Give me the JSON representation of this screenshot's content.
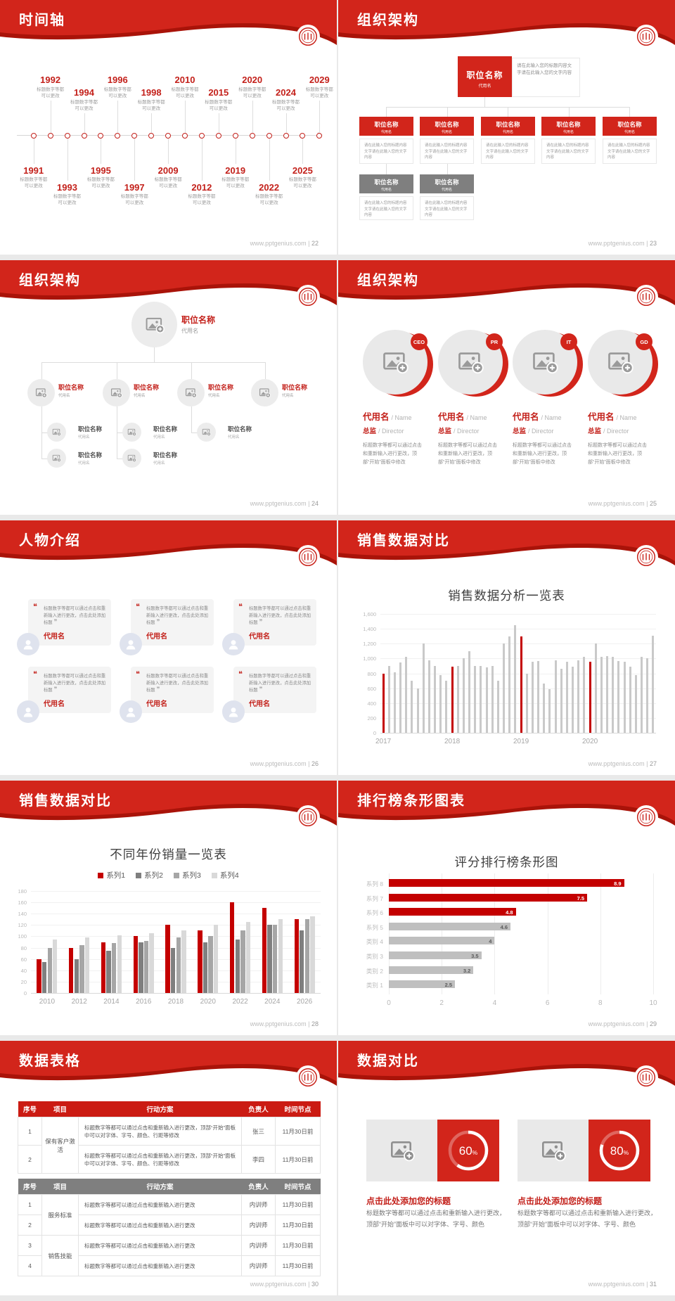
{
  "site": "www.pptgenius.com",
  "shared": {
    "job_title": "职位名称",
    "alias": "代用名",
    "org_note": "请在此输入您的标题内容文字请在此输入您的文字内容",
    "quote_open": "❝",
    "quote_close": "❞"
  },
  "slides": {
    "timeline": {
      "title": "时间轴",
      "page": "22",
      "caption": "标题数字等都可以更改",
      "years": [
        {
          "year": "1991",
          "pos": "bn"
        },
        {
          "year": "1992",
          "pos": "af"
        },
        {
          "year": "1993",
          "pos": "bf"
        },
        {
          "year": "1994",
          "pos": "an"
        },
        {
          "year": "1995",
          "pos": "bn"
        },
        {
          "year": "1996",
          "pos": "af"
        },
        {
          "year": "1997",
          "pos": "bf"
        },
        {
          "year": "1998",
          "pos": "an"
        },
        {
          "year": "2009",
          "pos": "bn"
        },
        {
          "year": "2010",
          "pos": "af"
        },
        {
          "year": "2012",
          "pos": "bf"
        },
        {
          "year": "2015",
          "pos": "an"
        },
        {
          "year": "2019",
          "pos": "bn"
        },
        {
          "year": "2020",
          "pos": "af"
        },
        {
          "year": "2022",
          "pos": "bf"
        },
        {
          "year": "2024",
          "pos": "an"
        },
        {
          "year": "2025",
          "pos": "bn"
        },
        {
          "year": "2029",
          "pos": "af"
        }
      ]
    },
    "org_boxes": {
      "title": "组织架构",
      "page": "23"
    },
    "org_photos": {
      "title": "组织架构",
      "page": "24"
    },
    "org_circles": {
      "title": "组织架构",
      "page": "25",
      "badges": [
        "CEO",
        "PR",
        "IT",
        "GD"
      ],
      "name_cn": "代用名",
      "name_en": "/ Name",
      "role_cn": "总监",
      "role_en": "/ Director",
      "desc": "标题数字等都可以通过点击和重新输入进行更改，顶部“开始”面板中修改"
    },
    "people": {
      "title": "人物介绍",
      "page": "26",
      "quote": "标题数字等都可以通过点击和重新输入进行更改，点击此处添加标题",
      "name": "代用名"
    },
    "chart_bars": {
      "title": "销售数据对比",
      "page": "27"
    },
    "chart_groups": {
      "title": "销售数据对比",
      "page": "28"
    },
    "chart_ranking": {
      "title": "排行榜条形图表",
      "page": "29"
    },
    "tables": {
      "title": "数据表格",
      "page": "30",
      "t1": {
        "header": [
          "序号",
          "项目",
          "行动方案",
          "负责人",
          "时间节点"
        ],
        "merged_project": "保有客户激活",
        "rows": [
          {
            "no": "1",
            "plan": "标题数字等都可以通过点击和重新输入进行更改，顶部“开始”面板中可以对字体、字号、颜色、行距等修改",
            "owner": "张三",
            "deadline": "11月30日前"
          },
          {
            "no": "2",
            "plan": "标题数字等都可以通过点击和重新输入进行更改，顶部“开始”面板中可以对字体、字号、颜色、行距等修改",
            "owner": "李四",
            "deadline": "11月30日前"
          }
        ]
      },
      "t2": {
        "header": [
          "序号",
          "项目",
          "行动方案",
          "负责人",
          "时间节点"
        ],
        "merged_projects": [
          "服务标准",
          "销售技能"
        ],
        "rows": [
          {
            "no": "1",
            "plan": "标题数字等都可以通过点击和重新输入进行更改",
            "owner": "内训师",
            "deadline": "11月30日前"
          },
          {
            "no": "2",
            "plan": "标题数字等都可以通过点击和重新输入进行更改",
            "owner": "内训师",
            "deadline": "11月30日前"
          },
          {
            "no": "3",
            "plan": "标题数字等都可以通过点击和重新输入进行更改",
            "owner": "内训师",
            "deadline": "11月30日前"
          },
          {
            "no": "4",
            "plan": "标题数字等都可以通过点击和重新输入进行更改",
            "owner": "内训师",
            "deadline": "11月30日前"
          }
        ]
      }
    },
    "compare": {
      "title": "数据对比",
      "page": "31",
      "item_title": "点击此处添加您的标题",
      "item_body": "标题数字等都可以通过点击和重新输入进行更改，顶部“开始”面板中可以对字体、字号、颜色",
      "items": [
        {
          "percent": 60
        },
        {
          "percent": 80
        }
      ]
    }
  },
  "chart_data": [
    {
      "type": "bar",
      "title": "销售数据分析一览表",
      "x_groups": [
        "2017",
        "2018",
        "2019",
        "2020"
      ],
      "group_size": 12,
      "values": [
        800,
        900,
        810,
        950,
        1020,
        700,
        600,
        1200,
        980,
        900,
        780,
        700,
        890,
        900,
        1000,
        1100,
        900,
        900,
        880,
        900,
        700,
        1200,
        1300,
        1450,
        1300,
        800,
        960,
        970,
        660,
        590,
        980,
        860,
        960,
        890,
        980,
        1020,
        960,
        1200,
        1020,
        1030,
        1020,
        970,
        960,
        890,
        780,
        1020,
        1000,
        1310
      ],
      "highlight_indices": [
        0,
        12,
        24,
        36
      ],
      "ylim": [
        0,
        1600
      ],
      "yticks": [
        "0",
        "200",
        "400",
        "600",
        "800",
        "1,000",
        "1,200",
        "1,400",
        "1,600"
      ],
      "bar_color": "#c9c9c9",
      "highlight_color": "#c40000",
      "grid": true,
      "legend": "none"
    },
    {
      "type": "grouped-bar",
      "title": "不同年份销量一览表",
      "categories": [
        "2010",
        "2012",
        "2014",
        "2016",
        "2018",
        "2020",
        "2022",
        "2024",
        "2026"
      ],
      "series": [
        {
          "name": "系列1",
          "color": "#c40000",
          "values": [
            60,
            80,
            90,
            100,
            120,
            110,
            160,
            150,
            130
          ]
        },
        {
          "name": "系列2",
          "color": "#7f7f7f",
          "values": [
            55,
            60,
            75,
            90,
            80,
            90,
            95,
            120,
            110
          ]
        },
        {
          "name": "系列3",
          "color": "#a6a6a6",
          "values": [
            80,
            85,
            88,
            92,
            98,
            100,
            110,
            120,
            130
          ]
        },
        {
          "name": "系列4",
          "color": "#d9d9d9",
          "values": [
            95,
            98,
            102,
            105,
            110,
            120,
            125,
            130,
            135
          ]
        }
      ],
      "ylim": [
        0,
        180
      ],
      "yticks": [
        "0",
        "20",
        "40",
        "60",
        "80",
        "100",
        "120",
        "140",
        "160",
        "180"
      ],
      "legend_position": "top",
      "grid": true
    },
    {
      "type": "hbar",
      "title": "评分排行榜条形图",
      "categories": [
        "系列 8",
        "系列 7",
        "系列 6",
        "系列 5",
        "类别 4",
        "类别 3",
        "类别 2",
        "类别 1"
      ],
      "values": [
        8.9,
        7.5,
        4.8,
        4.6,
        4,
        3.5,
        3.2,
        2.5
      ],
      "value_labels": [
        "8.9",
        "7.5",
        "4.8",
        "4.6",
        "4",
        "3.5",
        "3.2",
        "2.5"
      ],
      "bar_colors": [
        "#c40000",
        "#c40000",
        "#c40000",
        "#bfbfbf",
        "#bfbfbf",
        "#bfbfbf",
        "#bfbfbf",
        "#bfbfbf"
      ],
      "xlim": [
        0,
        10
      ],
      "xticks": [
        "0",
        "2",
        "4",
        "6",
        "8",
        "10"
      ],
      "grid": true,
      "legend": "none"
    }
  ]
}
